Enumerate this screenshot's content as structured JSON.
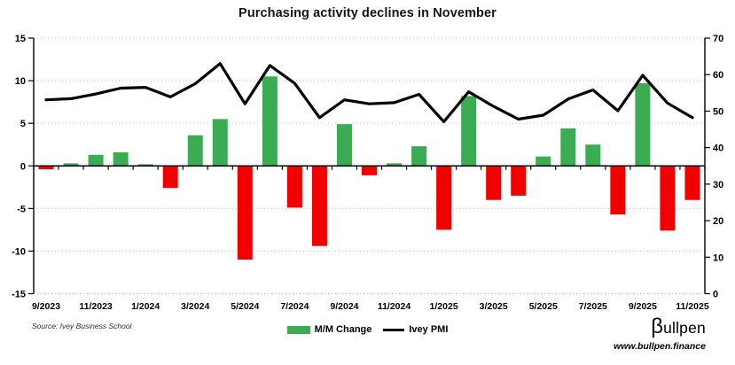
{
  "header": {
    "title": "Purchasing activity declines in November"
  },
  "source_note": "Source: Ivey Business School",
  "branding": {
    "logo_beta": "β",
    "logo_rest": "ullpen",
    "website": "www.bullpen.finance"
  },
  "colors": {
    "positive_bar": "#3CAC54",
    "negative_bar": "#F20000",
    "line": "#000000",
    "grid": "#C9C9C9",
    "axis": "#000000",
    "background": "#FFFFFF"
  },
  "chart_data": {
    "type": "bar",
    "subtype": "bar-and-line-combo",
    "title": "Purchasing activity declines in November",
    "categories": [
      "9/2023",
      "10/2023",
      "11/2023",
      "12/2023",
      "1/2024",
      "2/2024",
      "3/2024",
      "4/2024",
      "5/2024",
      "6/2024",
      "7/2024",
      "8/2024",
      "9/2024",
      "10/2024",
      "11/2024",
      "12/2024",
      "1/2025",
      "2/2025",
      "3/2025",
      "4/2025",
      "5/2025",
      "6/2025",
      "7/2025",
      "8/2025",
      "9/2025",
      "10/2025",
      "11/2025"
    ],
    "label_every": 2,
    "series": [
      {
        "name": "M/M Change",
        "type": "bar",
        "axis": "left",
        "values": [
          -0.4,
          0.3,
          1.3,
          1.6,
          0.2,
          -2.6,
          3.6,
          5.5,
          -11.0,
          10.5,
          -4.9,
          -9.4,
          4.9,
          -1.1,
          0.3,
          2.3,
          -7.5,
          8.2,
          -4.0,
          -3.5,
          1.1,
          4.4,
          2.5,
          -5.7,
          9.7,
          -7.6,
          -4.0
        ]
      },
      {
        "name": "Ivey PMI",
        "type": "line",
        "axis": "right",
        "values": [
          53.1,
          53.4,
          54.7,
          56.3,
          56.5,
          53.9,
          57.5,
          63.0,
          52.0,
          62.5,
          57.6,
          48.2,
          53.1,
          52.0,
          52.3,
          54.6,
          47.1,
          55.3,
          51.3,
          47.8,
          48.9,
          53.3,
          55.8,
          50.1,
          59.8,
          52.2,
          48.2
        ]
      }
    ],
    "left_axis": {
      "min": -15,
      "max": 15,
      "ticks": [
        15,
        10,
        5,
        0,
        -5,
        -10,
        -15
      ]
    },
    "right_axis": {
      "min": 0,
      "max": 70,
      "ticks": [
        70,
        60,
        50,
        40,
        30,
        20,
        10,
        0
      ]
    },
    "grid": "horizontal dotted lines at left-axis intervals of 5",
    "legend_position": "bottom-center"
  }
}
